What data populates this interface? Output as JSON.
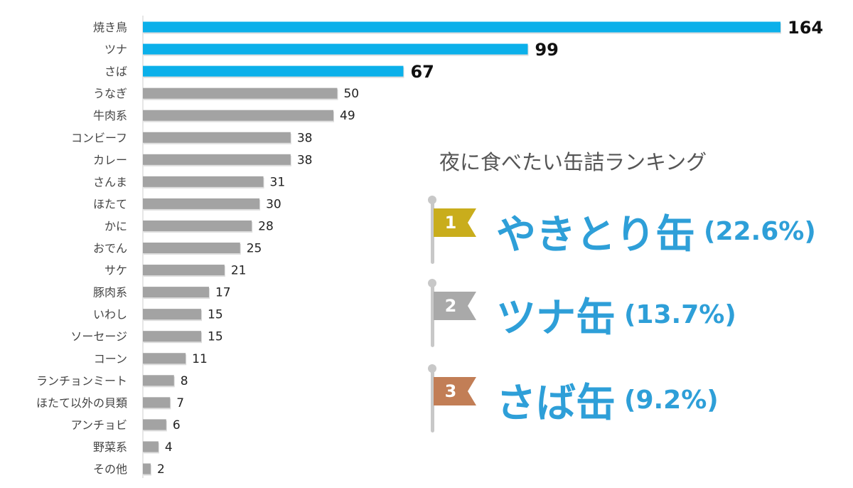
{
  "chart_data": {
    "type": "bar",
    "orientation": "horizontal",
    "categories": [
      "焼き鳥",
      "ツナ",
      "さば",
      "うなぎ",
      "牛肉系",
      "コンビーフ",
      "カレー",
      "さんま",
      "ほたて",
      "かに",
      "おでん",
      "サケ",
      "豚肉系",
      "いわし",
      "ソーセージ",
      "コーン",
      "ランチョンミート",
      "ほたて以外の貝類",
      "アンチョビ",
      "野菜系",
      "その他"
    ],
    "values": [
      164,
      99,
      67,
      50,
      49,
      38,
      38,
      31,
      30,
      28,
      25,
      21,
      17,
      15,
      15,
      11,
      8,
      7,
      6,
      4,
      2
    ],
    "highlight_top": 3,
    "colors": {
      "highlight": "#0bb0ea",
      "default": "#a3a3a3"
    },
    "grid": false,
    "legend": "none"
  },
  "ranking": {
    "title": "夜に食べたい缶詰ランキング",
    "items": [
      {
        "rank": "1",
        "name": "やきとり缶",
        "percent": "(22.6%)",
        "flag_color": "#c9ad1c"
      },
      {
        "rank": "2",
        "name": "ツナ缶",
        "percent": "(13.7%)",
        "flag_color": "#a9a9a9"
      },
      {
        "rank": "3",
        "name": "さば缶",
        "percent": "(9.2%)",
        "flag_color": "#c27e56"
      }
    ]
  }
}
